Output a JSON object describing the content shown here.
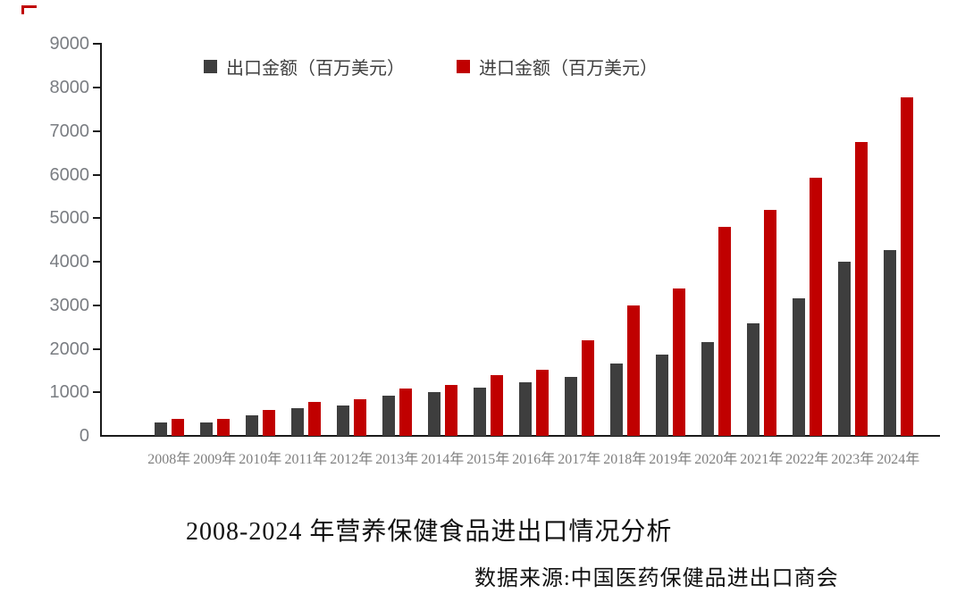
{
  "chart_data": {
    "type": "bar",
    "title": "2008-2024 年营养保健食品进出口情况分析",
    "source": "数据来源:中国医药保健品进出口商会",
    "categories": [
      "2008年",
      "2009年",
      "2010年",
      "2011年",
      "2012年",
      "2013年",
      "2014年",
      "2015年",
      "2016年",
      "2017年",
      "2018年",
      "2019年",
      "2020年",
      "2021年",
      "2022年",
      "2023年",
      "2024年"
    ],
    "series": [
      {
        "name": "出口金额（百万美元）",
        "color": "#3e3e3e",
        "values": [
          300,
          300,
          470,
          630,
          705,
          915,
          1000,
          1115,
          1225,
          1355,
          1655,
          1860,
          2150,
          2590,
          3165,
          4010,
          4270
        ]
      },
      {
        "name": "进口金额（百万美元）",
        "color": "#c00000",
        "values": [
          390,
          400,
          600,
          775,
          840,
          1090,
          1160,
          1385,
          1525,
          2190,
          3000,
          3390,
          4800,
          5185,
          5935,
          6750,
          7765
        ]
      }
    ],
    "ylim": [
      0,
      9000
    ],
    "ytick_step": 1000,
    "ytick_labels": [
      "0",
      "1000",
      "2000",
      "3000",
      "4000",
      "5000",
      "6000",
      "7000",
      "8000",
      "9000"
    ],
    "legend_position": "top",
    "grid": false
  },
  "colors": {
    "axis": "#1a1a1a",
    "tick_label": "#7a7d82",
    "x_label": "#7f7f7f",
    "legend_text": "#3f3f3f",
    "export_bar": "#3e3e3e",
    "import_bar": "#c00000",
    "corner_mark": "#c00000"
  }
}
